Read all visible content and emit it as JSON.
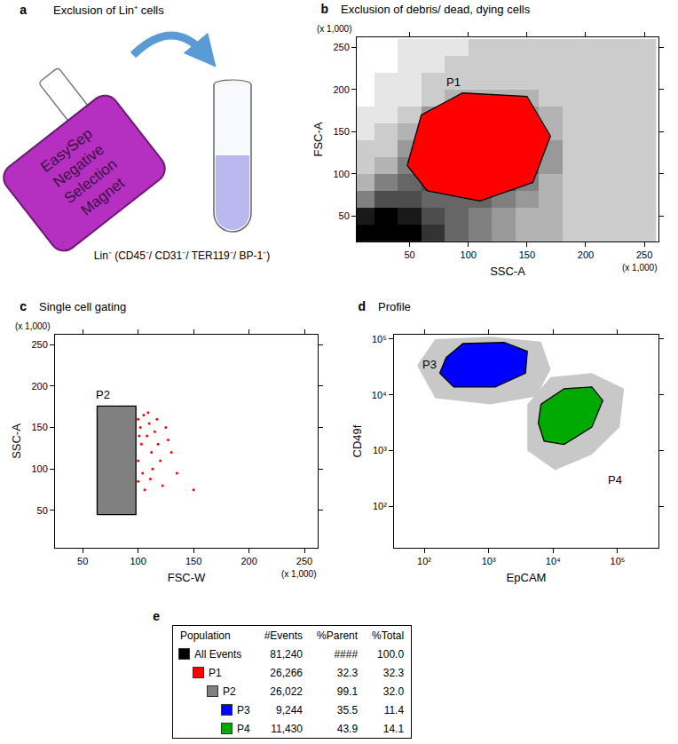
{
  "panels": {
    "a": {
      "letter": "a",
      "title": "Exclusion of Lin⁺ cells",
      "magnet_lines": [
        "EasySep",
        "Negative",
        "Selection",
        "Magnet"
      ],
      "tube": "Lin⁻ (CD45⁻/ CD31⁻/ TER119⁻/ BP-1⁻)"
    }
  },
  "chart_data": [
    {
      "type": "scatter",
      "letter": "b",
      "title": "Exclusion of debris/ dead, dying cells",
      "x_label": "SSC-A",
      "y_label": "FSC-A",
      "x_note": "(x 1,000)",
      "y_note": "(x 1,000)",
      "xlim": [
        5,
        262
      ],
      "ylim": [
        20,
        262
      ],
      "xticks": [
        50,
        100,
        150,
        200,
        250
      ],
      "yticks": [
        50,
        100,
        150,
        200,
        250
      ],
      "grid": false,
      "density": {
        "color": "#000000",
        "x": [
          10,
          30,
          50,
          70,
          90,
          110,
          130,
          150,
          170,
          190,
          210,
          230,
          250
        ],
        "y": [
          30,
          50,
          70,
          90,
          110,
          130,
          150,
          170,
          190,
          210,
          230,
          250
        ],
        "z": [
          [
            10,
            10,
            10,
            8,
            6,
            5,
            4,
            3,
            3,
            2,
            2,
            2,
            2
          ],
          [
            9,
            10,
            9,
            7,
            6,
            5,
            4,
            3,
            3,
            2,
            2,
            2,
            2
          ],
          [
            5,
            7,
            7,
            6,
            6,
            6,
            5,
            4,
            3,
            2,
            2,
            2,
            2
          ],
          [
            3,
            5,
            6,
            7,
            8,
            8,
            7,
            5,
            3,
            2,
            2,
            2,
            2
          ],
          [
            2,
            3,
            5,
            8,
            9,
            9,
            8,
            6,
            4,
            2,
            2,
            2,
            2
          ],
          [
            2,
            2,
            4,
            7,
            9,
            9,
            8,
            6,
            4,
            2,
            2,
            2,
            2
          ],
          [
            1,
            2,
            3,
            6,
            8,
            8,
            7,
            5,
            3,
            2,
            2,
            2,
            2
          ],
          [
            1,
            1,
            2,
            4,
            6,
            6,
            5,
            4,
            3,
            2,
            2,
            2,
            2
          ],
          [
            0,
            1,
            1,
            2,
            3,
            3,
            3,
            3,
            2,
            2,
            2,
            2,
            2
          ],
          [
            0,
            1,
            1,
            2,
            2,
            2,
            2,
            2,
            2,
            2,
            2,
            2,
            2
          ],
          [
            0,
            0,
            1,
            1,
            2,
            2,
            2,
            2,
            2,
            2,
            2,
            2,
            2
          ],
          [
            0,
            0,
            1,
            1,
            1,
            2,
            2,
            2,
            2,
            2,
            2,
            2,
            2
          ]
        ]
      },
      "gates": [
        {
          "name": "P1",
          "color": "#ff0000",
          "x": [
            48,
            60,
            95,
            150,
            170,
            155,
            110,
            65
          ],
          "y": [
            110,
            170,
            196,
            192,
            145,
            90,
            68,
            80
          ]
        }
      ]
    },
    {
      "type": "scatter",
      "letter": "c",
      "title": "Single cell gating",
      "x_label": "FSC-W",
      "y_label": "SSC-A",
      "x_note": "(x 1,000)",
      "y_note": "(x 1,000)",
      "xlim": [
        25,
        262
      ],
      "ylim": [
        5,
        262
      ],
      "xticks": [
        50,
        100,
        150,
        200,
        250
      ],
      "yticks": [
        50,
        100,
        150,
        200,
        250
      ],
      "grid": false,
      "gates": [
        {
          "name": "P2",
          "color": "#808080",
          "x": [
            63,
            63,
            98,
            98
          ],
          "y": [
            45,
            176,
            176,
            45
          ]
        }
      ],
      "outliers": {
        "color": "#ff0000",
        "x": [
          100,
          102,
          105,
          108,
          103,
          110,
          112,
          100,
          115,
          118,
          104,
          120,
          125,
          106,
          130,
          100,
          113,
          135,
          122,
          150,
          109,
          117,
          127,
          101,
          111
        ],
        "y": [
          160,
          150,
          165,
          140,
          130,
          155,
          120,
          110,
          145,
          130,
          95,
          110,
          150,
          75,
          120,
          85,
          100,
          95,
          80,
          75,
          168,
          160,
          135,
          140,
          88
        ]
      }
    },
    {
      "type": "scatter",
      "letter": "d",
      "title": "Profile",
      "x_label": "EpCAM",
      "y_label": "CD49f",
      "log": true,
      "xlim": [
        34,
        430000
      ],
      "ylim": [
        18,
        120000
      ],
      "xticks": [
        {
          "value": 100,
          "label": "10²"
        },
        {
          "value": 1000,
          "label": "10³"
        },
        {
          "value": 10000,
          "label": "10⁴"
        },
        {
          "value": 100000,
          "label": "10⁵"
        }
      ],
      "yticks": [
        {
          "value": 100,
          "label": "10²"
        },
        {
          "value": 1000,
          "label": "10³"
        },
        {
          "value": 10000,
          "label": "10⁴"
        },
        {
          "value": 100000,
          "label": "10⁵"
        }
      ],
      "grid": false,
      "events": [
        {
          "color": "#c8c8c8",
          "x": [
            77.6,
            148,
            1070,
            6460,
            9120,
            5500,
            1070,
            148
          ],
          "y": [
            33900,
            100000,
            110000,
            90000,
            28800,
            9330,
            6760,
            8710
          ]
        },
        {
          "color": "#c8c8c8",
          "x": [
            3980,
            9120,
            39800,
            126000,
            107000,
            39800,
            10700,
            3980
          ],
          "y": [
            6760,
            20900,
            24500,
            12900,
            2630,
            851,
            447,
            1000
          ]
        }
      ],
      "gates": [
        {
          "name": "P3",
          "color": "#0000ff",
          "x": [
            174,
            219,
            398,
            1740,
            3980,
            3720,
            1260,
            288
          ],
          "y": [
            24500,
            46800,
            83200,
            87100,
            60300,
            24500,
            13800,
            13800
          ]
        },
        {
          "name": "P4",
          "color": "#00aa00",
          "x": [
            6460,
            14800,
            39800,
            58900,
            39800,
            14800,
            7240,
            5890
          ],
          "y": [
            6760,
            12900,
            13800,
            7940,
            2630,
            1290,
            1480,
            3090
          ]
        }
      ]
    }
  ],
  "table": {
    "letter": "e",
    "header": [
      "Population",
      "#Events",
      "%Parent",
      "%Total"
    ],
    "rows": [
      {
        "name": "All Events",
        "color": "#000000",
        "cells": [
          "81,240",
          "####",
          "100.0"
        ],
        "children": [
          {
            "name": "P1",
            "color": "#ff0000",
            "cells": [
              "26,266",
              "32.3",
              "32.3"
            ],
            "children": [
              {
                "name": "P2",
                "color": "#808080",
                "cells": [
                  "26,022",
                  "99.1",
                  "32.0"
                ],
                "children": [
                  {
                    "name": "P3",
                    "color": "#0000ff",
                    "cells": [
                      "9,244",
                      "35.5",
                      "11.4"
                    ],
                    "children": []
                  },
                  {
                    "name": "P4",
                    "color": "#00aa00",
                    "cells": [
                      "11,430",
                      "43.9",
                      "14.1"
                    ],
                    "children": []
                  }
                ]
              }
            ]
          }
        ]
      }
    ]
  }
}
